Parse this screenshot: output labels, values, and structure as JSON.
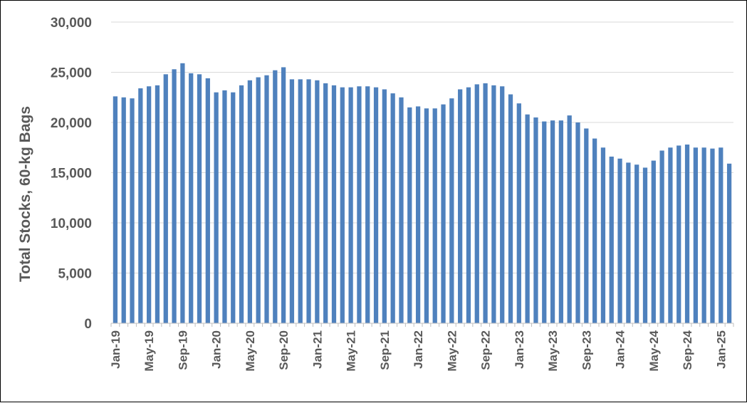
{
  "chart_data": {
    "type": "bar",
    "title": "",
    "xlabel": "",
    "ylabel": "Total Stocks, 60-kg Bags",
    "ylim": [
      0,
      30000
    ],
    "y_ticks": [
      0,
      5000,
      10000,
      15000,
      20000,
      25000,
      30000
    ],
    "y_tick_labels": [
      "0",
      "5,000",
      "10,000",
      "15,000",
      "20,000",
      "25,000",
      "30,000"
    ],
    "grid": true,
    "legend": "none",
    "bar_color": "#4F81BD",
    "categories": [
      "Jan-19",
      "Feb-19",
      "Mar-19",
      "Apr-19",
      "May-19",
      "Jun-19",
      "Jul-19",
      "Aug-19",
      "Sep-19",
      "Oct-19",
      "Nov-19",
      "Dec-19",
      "Jan-20",
      "Feb-20",
      "Mar-20",
      "Apr-20",
      "May-20",
      "Jun-20",
      "Jul-20",
      "Aug-20",
      "Sep-20",
      "Oct-20",
      "Nov-20",
      "Dec-20",
      "Jan-21",
      "Feb-21",
      "Mar-21",
      "Apr-21",
      "May-21",
      "Jun-21",
      "Jul-21",
      "Aug-21",
      "Sep-21",
      "Oct-21",
      "Nov-21",
      "Dec-21",
      "Jan-22",
      "Feb-22",
      "Mar-22",
      "Apr-22",
      "May-22",
      "Jun-22",
      "Jul-22",
      "Aug-22",
      "Sep-22",
      "Oct-22",
      "Nov-22",
      "Dec-22",
      "Jan-23",
      "Feb-23",
      "Mar-23",
      "Apr-23",
      "May-23",
      "Jun-23",
      "Jul-23",
      "Aug-23",
      "Sep-23",
      "Oct-23",
      "Nov-23",
      "Dec-23",
      "Jan-24",
      "Feb-24",
      "Mar-24",
      "Apr-24",
      "May-24",
      "Jun-24",
      "Jul-24",
      "Aug-24",
      "Sep-24",
      "Oct-24",
      "Nov-24",
      "Dec-24",
      "Jan-25",
      "Feb-25"
    ],
    "x_tick_labels": [
      "Jan-19",
      "May-19",
      "Sep-19",
      "Jan-20",
      "May-20",
      "Sep-20",
      "Jan-21",
      "May-21",
      "Sep-21",
      "Jan-22",
      "May-22",
      "Sep-22",
      "Jan-23",
      "May-23",
      "Sep-23",
      "Jan-24",
      "May-24",
      "Sep-24",
      "Jan-25"
    ],
    "values": [
      22600,
      22500,
      22400,
      23400,
      23600,
      23700,
      24800,
      25300,
      25900,
      24900,
      24800,
      24400,
      23000,
      23200,
      23000,
      23700,
      24200,
      24500,
      24700,
      25200,
      25500,
      24300,
      24300,
      24300,
      24200,
      23900,
      23700,
      23500,
      23500,
      23600,
      23600,
      23500,
      23300,
      22900,
      22500,
      21500,
      21600,
      21400,
      21400,
      21800,
      22400,
      23300,
      23500,
      23800,
      23900,
      23700,
      23600,
      22800,
      21900,
      20800,
      20500,
      20100,
      20200,
      20200,
      20700,
      20000,
      19400,
      18400,
      17500,
      16600,
      16400,
      16000,
      15800,
      15500,
      16200,
      17200,
      17500,
      17700,
      17800,
      17500,
      17500,
      17400,
      17500,
      15900
    ]
  }
}
